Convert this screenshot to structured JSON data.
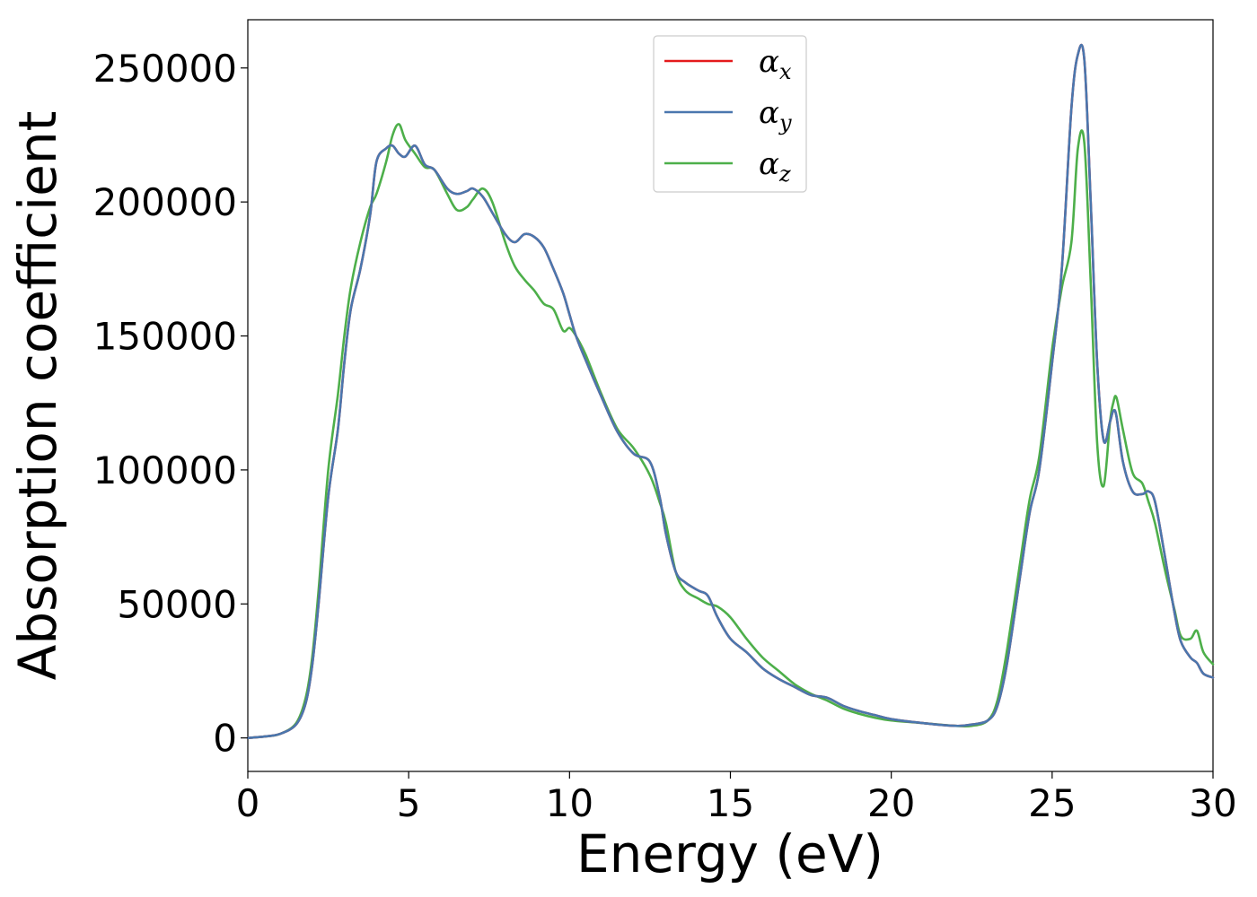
{
  "chart_data": {
    "type": "line",
    "title": "",
    "xlabel": "Energy (eV)",
    "ylabel": "Absorption coefficient",
    "xlim": [
      0,
      30
    ],
    "ylim": [
      -12500,
      268000
    ],
    "xticks": [
      "0",
      "5",
      "10",
      "15",
      "20",
      "25",
      "30"
    ],
    "yticks": [
      "0",
      "50000",
      "100000",
      "150000",
      "200000",
      "250000"
    ],
    "grid": false,
    "legend": {
      "placement": "top-center",
      "entries": [
        {
          "symbol": "α",
          "subscript": "x",
          "color": "#e41a1c"
        },
        {
          "symbol": "α",
          "subscript": "y",
          "color": "#4a77ae"
        },
        {
          "symbol": "α",
          "subscript": "z",
          "color": "#4daf4a"
        }
      ]
    },
    "x": [
      0,
      0.5,
      1.0,
      1.5,
      1.8,
      2.0,
      2.2,
      2.5,
      2.8,
      3.0,
      3.2,
      3.5,
      3.8,
      4.0,
      4.3,
      4.5,
      4.7,
      4.9,
      5.2,
      5.5,
      5.8,
      6.2,
      6.5,
      6.8,
      7.0,
      7.3,
      7.6,
      8.0,
      8.3,
      8.6,
      8.9,
      9.2,
      9.5,
      9.8,
      10.0,
      10.2,
      10.5,
      11.0,
      11.5,
      12.0,
      12.5,
      12.8,
      13.0,
      13.3,
      13.6,
      14.0,
      14.3,
      14.6,
      15.0,
      15.5,
      16.0,
      16.5,
      17.0,
      17.5,
      18.0,
      18.5,
      19.0,
      19.5,
      20.0,
      21.0,
      22.0,
      22.5,
      23.0,
      23.3,
      23.6,
      24.0,
      24.3,
      24.6,
      25.0,
      25.3,
      25.6,
      25.8,
      26.0,
      26.2,
      26.4,
      26.6,
      26.8,
      26.9,
      27.0,
      27.2,
      27.5,
      27.8,
      28.0,
      28.2,
      28.5,
      28.8,
      29.0,
      29.3,
      29.5,
      29.7,
      30.0
    ],
    "series": [
      {
        "name": "α_x",
        "color": "#e41a1c",
        "values": [
          0,
          500,
          1500,
          5000,
          13000,
          27000,
          50000,
          90000,
          115000,
          140000,
          160000,
          175000,
          195000,
          215000,
          220000,
          221000,
          218000,
          217000,
          221000,
          214000,
          212000,
          205000,
          203000,
          204000,
          205000,
          202000,
          196000,
          188000,
          185000,
          188000,
          187000,
          183000,
          175000,
          166000,
          158000,
          150000,
          141000,
          127000,
          114000,
          106000,
          103000,
          90000,
          76000,
          62000,
          58000,
          55000,
          53000,
          45000,
          37000,
          32000,
          26000,
          22000,
          19000,
          16000,
          15000,
          12000,
          10000,
          8500,
          7000,
          5500,
          4500,
          5000,
          6500,
          12000,
          28000,
          60000,
          84000,
          100000,
          140000,
          175000,
          235000,
          255000,
          253000,
          200000,
          140000,
          111000,
          118000,
          122000,
          120000,
          103000,
          92000,
          91000,
          92000,
          88000,
          68000,
          47000,
          36000,
          30000,
          28000,
          24000,
          22500
        ]
      },
      {
        "name": "α_y",
        "color": "#4a77ae",
        "values": [
          0,
          500,
          1500,
          5000,
          13000,
          27000,
          50000,
          90000,
          115000,
          140000,
          160000,
          175000,
          195000,
          215000,
          220000,
          221000,
          218000,
          217000,
          221000,
          214000,
          212000,
          205000,
          203000,
          204000,
          205000,
          202000,
          196000,
          188000,
          185000,
          188000,
          187000,
          183000,
          175000,
          166000,
          158000,
          150000,
          141000,
          127000,
          114000,
          106000,
          103000,
          90000,
          76000,
          62000,
          58000,
          55000,
          53000,
          45000,
          37000,
          32000,
          26000,
          22000,
          19000,
          16000,
          15000,
          12000,
          10000,
          8500,
          7000,
          5500,
          4500,
          5000,
          6500,
          12000,
          28000,
          60000,
          84000,
          100000,
          140000,
          175000,
          235000,
          255000,
          253000,
          200000,
          140000,
          111000,
          118000,
          122000,
          120000,
          103000,
          92000,
          91000,
          92000,
          88000,
          68000,
          47000,
          36000,
          30000,
          28000,
          24000,
          22500
        ]
      },
      {
        "name": "α_z",
        "color": "#4daf4a",
        "values": [
          0,
          500,
          1500,
          5500,
          15000,
          30000,
          55000,
          100000,
          128000,
          150000,
          168000,
          185000,
          198000,
          203000,
          215000,
          225000,
          229000,
          223000,
          218000,
          213000,
          212000,
          203000,
          197000,
          198000,
          201000,
          205000,
          200000,
          185000,
          176000,
          171000,
          167000,
          162000,
          160000,
          152000,
          153000,
          150000,
          143000,
          128000,
          115000,
          108000,
          98000,
          88000,
          80000,
          62000,
          55000,
          52000,
          50000,
          49000,
          45000,
          37000,
          30000,
          25000,
          20000,
          16500,
          14000,
          11000,
          9000,
          7500,
          6500,
          5500,
          4500,
          4500,
          6500,
          14000,
          33000,
          65000,
          89000,
          105000,
          145000,
          168000,
          185000,
          220000,
          222000,
          170000,
          110000,
          94000,
          118000,
          125000,
          127000,
          115000,
          99000,
          95000,
          88000,
          80000,
          63000,
          48000,
          38000,
          37000,
          40000,
          32000,
          27500
        ]
      }
    ]
  }
}
